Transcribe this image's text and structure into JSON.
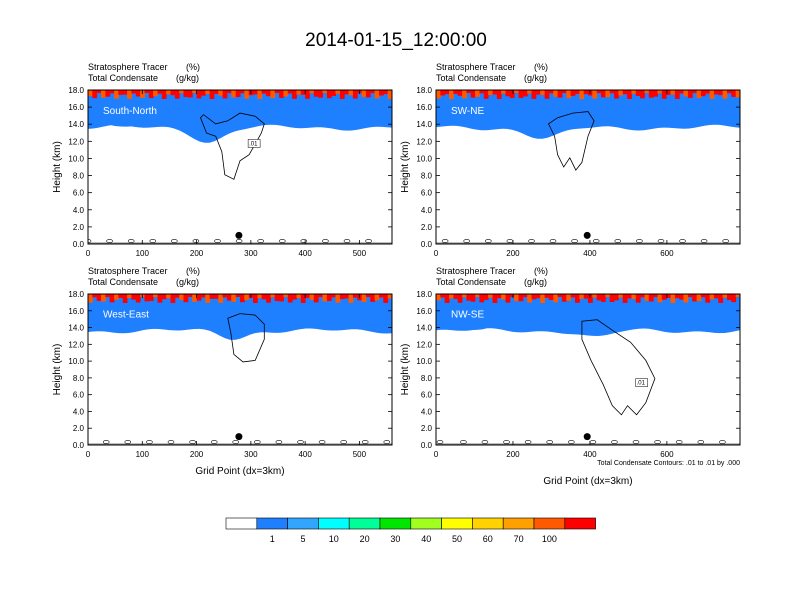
{
  "title": "2014-01-15_12:00:00",
  "panel_header": {
    "field1": "Stratosphere Tracer",
    "unit1": "(%)",
    "field2": "Total Condensate",
    "unit2": "(g/kg)"
  },
  "contour_note": "Total Condensate Contours: .01 to .01 by .000",
  "colors": {
    "levels": [
      "#ffffff",
      "#1e7fff",
      "#32a6ff",
      "#00ffff",
      "#00ff96",
      "#00e600",
      "#a0ff1e",
      "#ffff00",
      "#ffd200",
      "#ffa000",
      "#ff5a00",
      "#ff0000"
    ],
    "point_marker": "#000000"
  },
  "chart_data": [
    {
      "type": "heatmap",
      "name": "South-North",
      "xlabel": "",
      "ylabel": "Height (km)",
      "xlim": [
        0,
        560
      ],
      "ylim": [
        0,
        18
      ],
      "x_ticks": [
        0,
        100,
        200,
        300,
        400,
        500
      ],
      "y_ticks": [
        "0.0",
        "2.0",
        "4.0",
        "6.0",
        "8.0",
        "10.0",
        "12.0",
        "14.0",
        "16.0",
        "18.0"
      ],
      "point_marker": {
        "x": 278,
        "y": 1.0
      },
      "contour_label": ".01"
    },
    {
      "type": "heatmap",
      "name": "SW-NE",
      "xlabel": "",
      "ylabel": "Height (km)",
      "xlim": [
        0,
        790
      ],
      "ylim": [
        0,
        18
      ],
      "x_ticks": [
        0,
        200,
        400,
        600
      ],
      "y_ticks": [
        "0.0",
        "2.0",
        "4.0",
        "6.0",
        "8.0",
        "10.0",
        "12.0",
        "14.0",
        "16.0",
        "18.0"
      ],
      "point_marker": {
        "x": 393,
        "y": 1.0
      },
      "contour_label": ""
    },
    {
      "type": "heatmap",
      "name": "West-East",
      "xlabel": "Grid Point (dx=3km)",
      "ylabel": "Height (km)",
      "xlim": [
        0,
        560
      ],
      "ylim": [
        0,
        18
      ],
      "x_ticks": [
        0,
        100,
        200,
        300,
        400,
        500
      ],
      "y_ticks": [
        "0.0",
        "2.0",
        "4.0",
        "6.0",
        "8.0",
        "10.0",
        "12.0",
        "14.0",
        "16.0",
        "18.0"
      ],
      "point_marker": {
        "x": 278,
        "y": 1.0
      },
      "contour_label": ""
    },
    {
      "type": "heatmap",
      "name": "NW-SE",
      "xlabel": "Grid Point (dx=3km)",
      "ylabel": "Height (km)",
      "xlim": [
        0,
        790
      ],
      "ylim": [
        0,
        18
      ],
      "x_ticks": [
        0,
        200,
        400,
        600
      ],
      "y_ticks": [
        "0.0",
        "2.0",
        "4.0",
        "6.0",
        "8.0",
        "10.0",
        "12.0",
        "14.0",
        "16.0",
        "18.0"
      ],
      "point_marker": {
        "x": 393,
        "y": 1.0
      },
      "contour_label": ".01"
    }
  ],
  "colorbar": {
    "labels": [
      "1",
      "5",
      "10",
      "20",
      "30",
      "40",
      "50",
      "60",
      "70",
      "100"
    ]
  }
}
